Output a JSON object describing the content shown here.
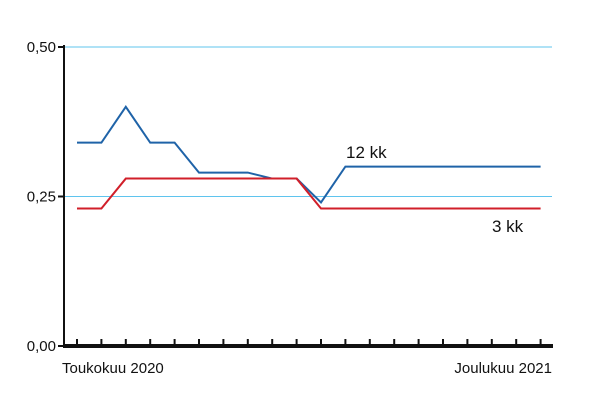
{
  "chart_data": {
    "type": "line",
    "title": "",
    "xlabel": "",
    "ylabel": "",
    "x_tick_labels": {
      "start": "Toukokuu 2020",
      "end": "Joulukuu 2021"
    },
    "x_months": [
      "2020-05",
      "2020-06",
      "2020-07",
      "2020-08",
      "2020-09",
      "2020-10",
      "2020-11",
      "2020-12",
      "2021-01",
      "2021-02",
      "2021-03",
      "2021-04",
      "2021-05",
      "2021-06",
      "2021-07",
      "2021-08",
      "2021-09",
      "2021-10",
      "2021-11",
      "2021-12"
    ],
    "y_tick_labels": [
      "0,00",
      "0,25",
      "0,50"
    ],
    "ylim": [
      0,
      0.5
    ],
    "gridlines": [
      0.25,
      0.5
    ],
    "series": [
      {
        "name": "12 kk",
        "color": "#1f63a8",
        "values": [
          0.34,
          0.34,
          0.4,
          0.34,
          0.34,
          0.29,
          0.29,
          0.29,
          0.28,
          0.28,
          0.24,
          0.3,
          0.3,
          0.3,
          0.3,
          0.3,
          0.3,
          0.3,
          0.3,
          0.3
        ]
      },
      {
        "name": "3 kk",
        "color": "#d11f2a",
        "values": [
          0.23,
          0.23,
          0.28,
          0.28,
          0.28,
          0.28,
          0.28,
          0.28,
          0.28,
          0.28,
          0.23,
          0.23,
          0.23,
          0.23,
          0.23,
          0.23,
          0.23,
          0.23,
          0.23,
          0.23
        ]
      }
    ],
    "grid_color": "#5fc4ee",
    "axis_color": "#111111"
  }
}
